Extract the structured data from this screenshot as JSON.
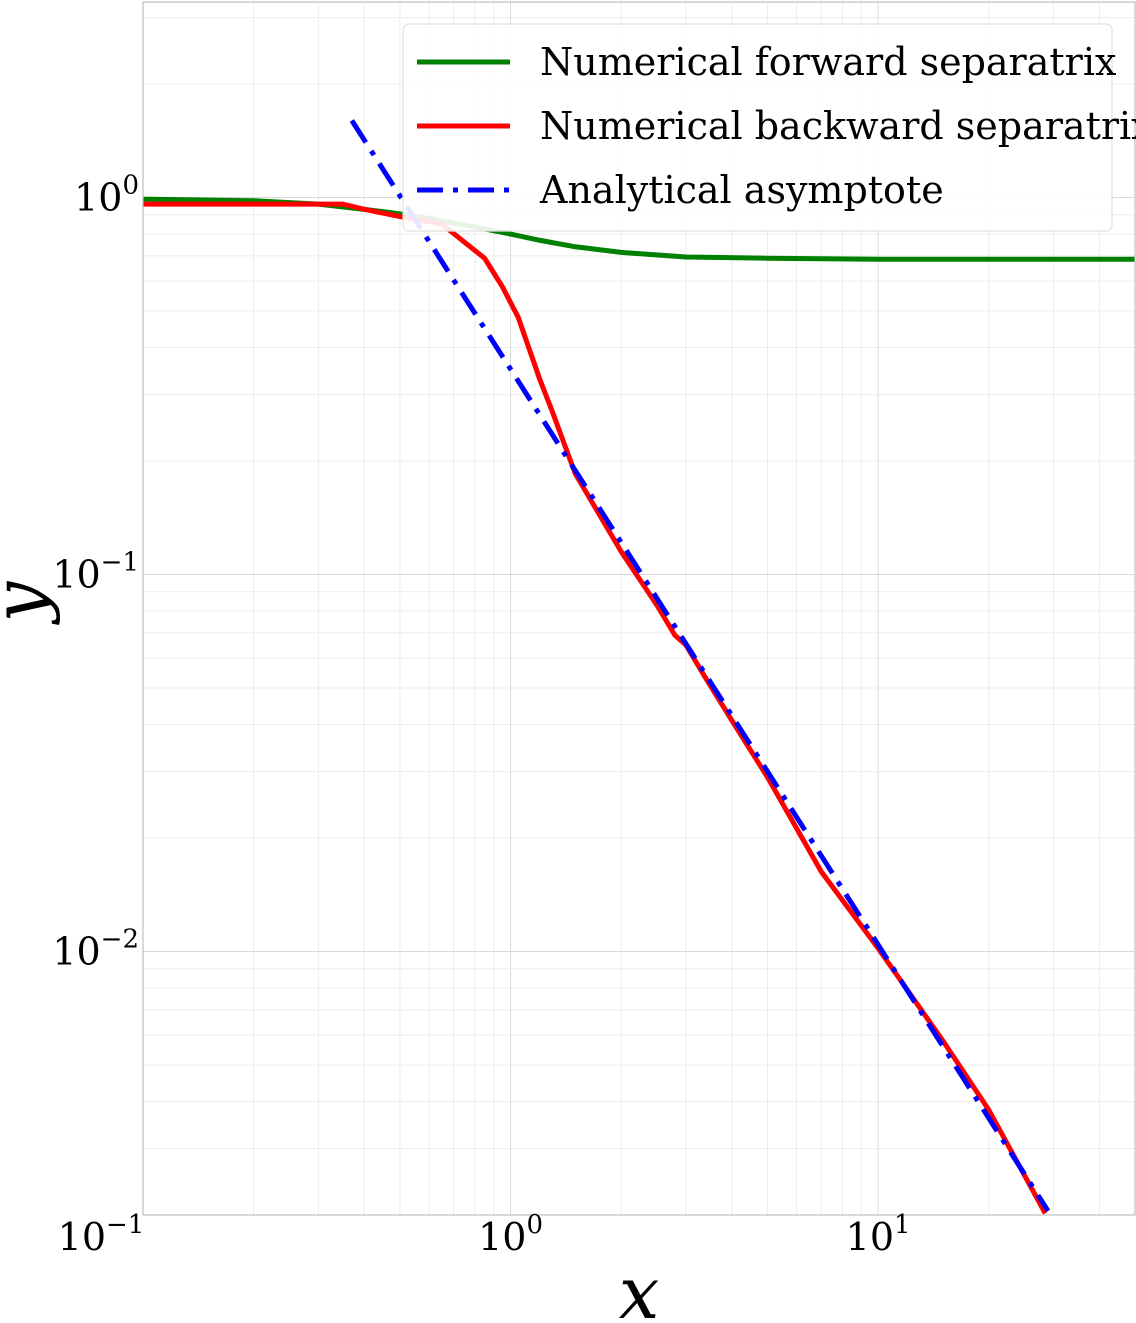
{
  "chart_data": {
    "type": "line",
    "xlabel": "x",
    "ylabel": "y",
    "xscale": "log",
    "yscale": "log",
    "xlim": [
      0.1,
      50
    ],
    "ylim": [
      0.002,
      3.3
    ],
    "grid": true,
    "legend_position": "top-right",
    "x_ticks": [
      {
        "value": 0.1,
        "base": "10",
        "exp": "−1"
      },
      {
        "value": 1,
        "base": "10",
        "exp": "0"
      },
      {
        "value": 10,
        "base": "10",
        "exp": "1"
      }
    ],
    "y_ticks": [
      {
        "value": 1,
        "base": "10",
        "exp": "0"
      },
      {
        "value": 0.1,
        "base": "10",
        "exp": "−1"
      },
      {
        "value": 0.01,
        "base": "10",
        "exp": "−2"
      }
    ],
    "series": [
      {
        "name": "Numerical forward separatrix",
        "color": "#008000",
        "dash": "solid",
        "points": [
          [
            0.1,
            0.99
          ],
          [
            0.2,
            0.98
          ],
          [
            0.3,
            0.96
          ],
          [
            0.4,
            0.93
          ],
          [
            0.5,
            0.905
          ],
          [
            0.6,
            0.88
          ],
          [
            0.7,
            0.855
          ],
          [
            0.8,
            0.835
          ],
          [
            1.0,
            0.8
          ],
          [
            1.2,
            0.77
          ],
          [
            1.5,
            0.74
          ],
          [
            2.0,
            0.715
          ],
          [
            3.0,
            0.695
          ],
          [
            5.0,
            0.69
          ],
          [
            10.0,
            0.686
          ],
          [
            20.0,
            0.686
          ],
          [
            50.0,
            0.686
          ]
        ]
      },
      {
        "name": "Numerical backward separatrix",
        "color": "#ff0000",
        "dash": "solid",
        "points": [
          [
            0.1,
            0.96
          ],
          [
            0.2,
            0.96
          ],
          [
            0.35,
            0.96
          ],
          [
            0.4,
            0.93
          ],
          [
            0.5,
            0.89
          ],
          [
            0.65,
            0.85
          ],
          [
            0.85,
            0.69
          ],
          [
            0.95,
            0.58
          ],
          [
            1.05,
            0.48
          ],
          [
            1.2,
            0.33
          ],
          [
            1.3,
            0.27
          ],
          [
            1.5,
            0.185
          ],
          [
            2.0,
            0.115
          ],
          [
            2.2,
            0.1
          ],
          [
            2.5,
            0.083
          ],
          [
            2.8,
            0.069
          ],
          [
            3.0,
            0.065
          ],
          [
            3.4,
            0.053
          ],
          [
            4.0,
            0.041
          ],
          [
            5.0,
            0.029
          ],
          [
            7.0,
            0.0163
          ],
          [
            10.0,
            0.0102
          ],
          [
            15.0,
            0.0058
          ],
          [
            20.0,
            0.0038
          ],
          [
            28.5,
            0.00202
          ]
        ]
      },
      {
        "name": "Analytical asymptote",
        "color": "#0000ff",
        "dash": "dashdot",
        "points": [
          [
            0.37,
            1.6
          ],
          [
            29.0,
            0.00205
          ]
        ]
      }
    ]
  }
}
